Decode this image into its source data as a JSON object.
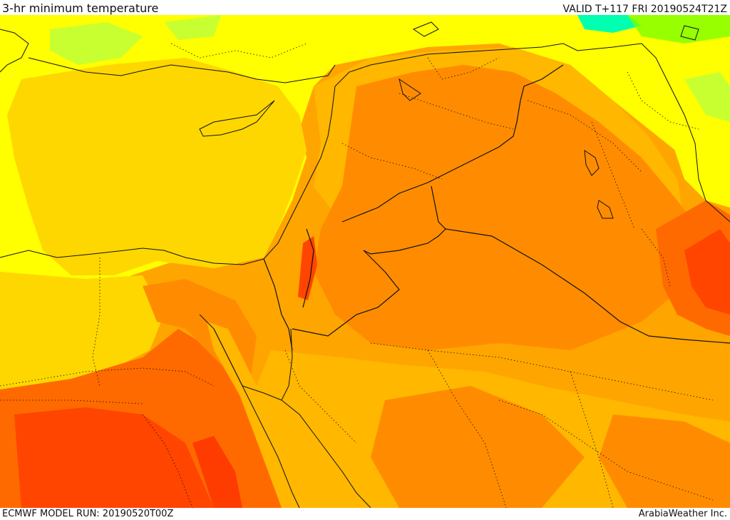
{
  "header": {
    "title": "3-hr minimum temperature",
    "valid": "VALID T+117 FRI 20190524T21Z"
  },
  "footer": {
    "model_run": "ECMWF MODEL RUN: 20190520T00Z",
    "credit": "ArabiaWeather Inc."
  },
  "map": {
    "field": "minimum temperature shaded field",
    "colors": {
      "cool_green": "#7dff00",
      "cyan": "#00ffb0",
      "light_green": "#c8ff30",
      "yellow": "#ffff00",
      "golden": "#ffd700",
      "amber": "#ffb700",
      "orange": "#ff8c00",
      "deep_orange": "#ff6a00",
      "red_orange": "#ff4500",
      "red": "#ff2a00"
    },
    "line_color": "#111111"
  }
}
